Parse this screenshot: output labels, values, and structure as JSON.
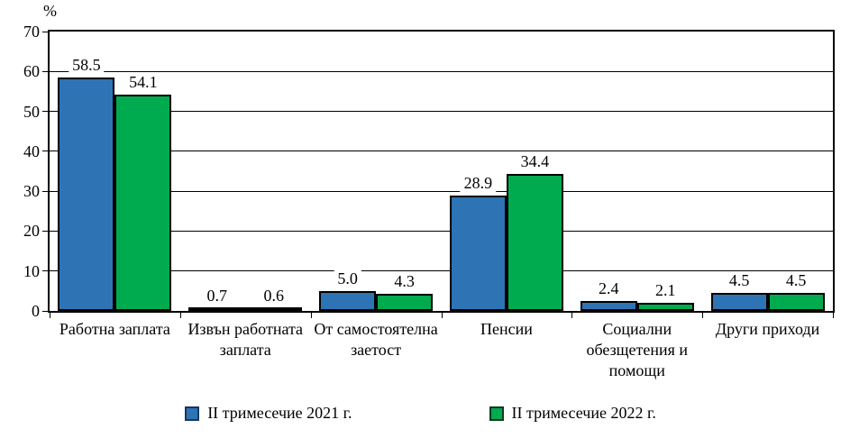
{
  "chart_data": {
    "type": "bar",
    "title": "",
    "xlabel": "",
    "ylabel": "%",
    "categories": [
      "Работна заплата",
      "Извън работната заплата",
      "От самостоятелна заетост",
      "Пенсии",
      "Социални обезщетения и помощи",
      "Други приходи"
    ],
    "series": [
      {
        "name": "II тримесечие 2021 г.",
        "color": "#2E74B5",
        "border_color": "#17375E",
        "values": [
          58.5,
          0.7,
          5.0,
          28.9,
          2.4,
          4.5
        ]
      },
      {
        "name": "II тримесечие 2022 г.",
        "color": "#00AB50",
        "border_color": "#0C3B1C",
        "values": [
          54.1,
          0.6,
          4.3,
          34.4,
          2.1,
          4.5
        ]
      }
    ],
    "ylim": [
      0,
      70
    ],
    "yticks": [
      0,
      10,
      20,
      30,
      40,
      50,
      60,
      70
    ],
    "grid": true,
    "legend_position": "bottom",
    "value_label_decimals": 1,
    "bar_outline_color": "#000000",
    "grid_color": "#000000"
  }
}
